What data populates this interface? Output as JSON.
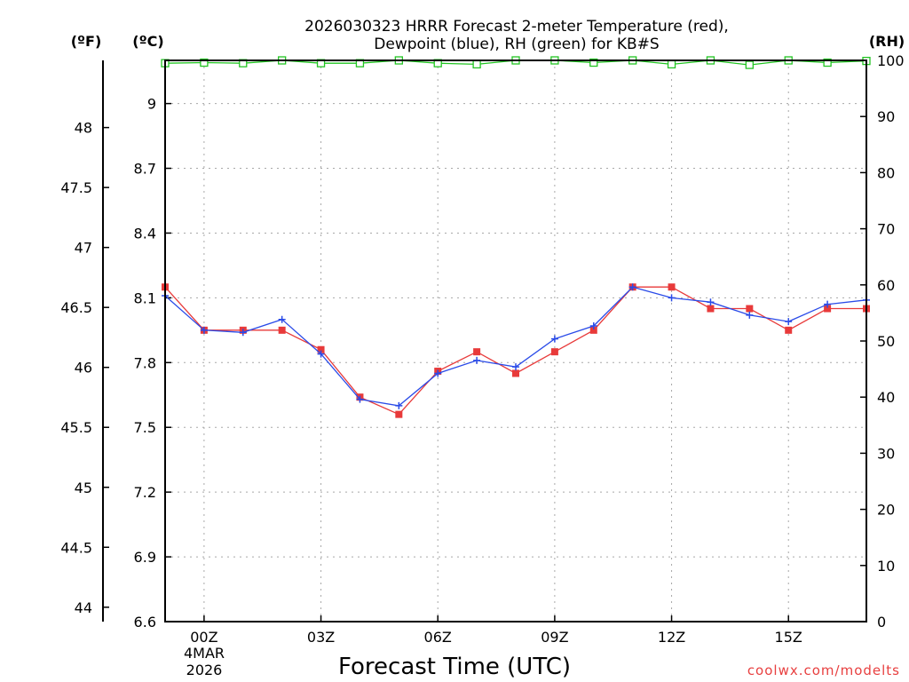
{
  "chart_data": {
    "type": "line",
    "title_lines": [
      "2026030323 HRRR Forecast 2-meter Temperature (red),",
      "Dewpoint (blue), RH (green) for KB#S"
    ],
    "xlabel": "Forecast Time (UTC)",
    "credit": "coolwx.com/modelts",
    "unit_labels": {
      "fahrenheit": "(ºF)",
      "celsius": "(ºC)",
      "rh": "(RH)"
    },
    "x_range": [
      -1,
      17
    ],
    "x_ticks": [
      {
        "x": 0,
        "label": "00Z"
      },
      {
        "x": 3,
        "label": "03Z"
      },
      {
        "x": 6,
        "label": "06Z"
      },
      {
        "x": 9,
        "label": "09Z"
      },
      {
        "x": 12,
        "label": "12Z"
      },
      {
        "x": 15,
        "label": "15Z"
      }
    ],
    "date_label": [
      "4MAR",
      "2026"
    ],
    "celsius_axis": {
      "range": [
        6.6,
        9.2
      ],
      "ticks": [
        "6.6",
        "6.9",
        "7.2",
        "7.5",
        "7.8",
        "8.1",
        "8.4",
        "8.7",
        "9"
      ]
    },
    "fahrenheit_axis": {
      "ticks": [
        "44",
        "44.5",
        "45",
        "45.5",
        "46",
        "46.5",
        "47",
        "47.5",
        "48"
      ]
    },
    "rh_axis": {
      "range": [
        0,
        100
      ],
      "ticks": [
        "0",
        "10",
        "20",
        "30",
        "40",
        "50",
        "60",
        "70",
        "80",
        "90",
        "100"
      ]
    },
    "x": [
      -1,
      0,
      1,
      2,
      3,
      4,
      5,
      6,
      7,
      8,
      9,
      10,
      11,
      12,
      13,
      14,
      15,
      16,
      17
    ],
    "series": [
      {
        "name": "Temperature",
        "axis": "celsius",
        "color": "#e83a3a",
        "marker": "square",
        "values": [
          8.15,
          7.95,
          7.95,
          7.95,
          7.86,
          7.64,
          7.56,
          7.76,
          7.85,
          7.75,
          7.85,
          7.95,
          8.15,
          8.15,
          8.05,
          8.05,
          7.95,
          8.05,
          8.05
        ]
      },
      {
        "name": "Dewpoint",
        "axis": "celsius",
        "color": "#2a4be8",
        "marker": "plus",
        "values": [
          8.11,
          7.95,
          7.94,
          8.0,
          7.84,
          7.63,
          7.6,
          7.75,
          7.81,
          7.78,
          7.91,
          7.97,
          8.15,
          8.1,
          8.08,
          8.02,
          7.99,
          8.07,
          8.09
        ]
      },
      {
        "name": "RH",
        "axis": "rh",
        "color": "#22c422",
        "marker": "open-square",
        "values": [
          99.5,
          99.6,
          99.5,
          100,
          99.5,
          99.5,
          100,
          99.5,
          99.3,
          100,
          100,
          99.6,
          100,
          99.3,
          100,
          99.2,
          100,
          99.6,
          99.9
        ]
      }
    ]
  }
}
